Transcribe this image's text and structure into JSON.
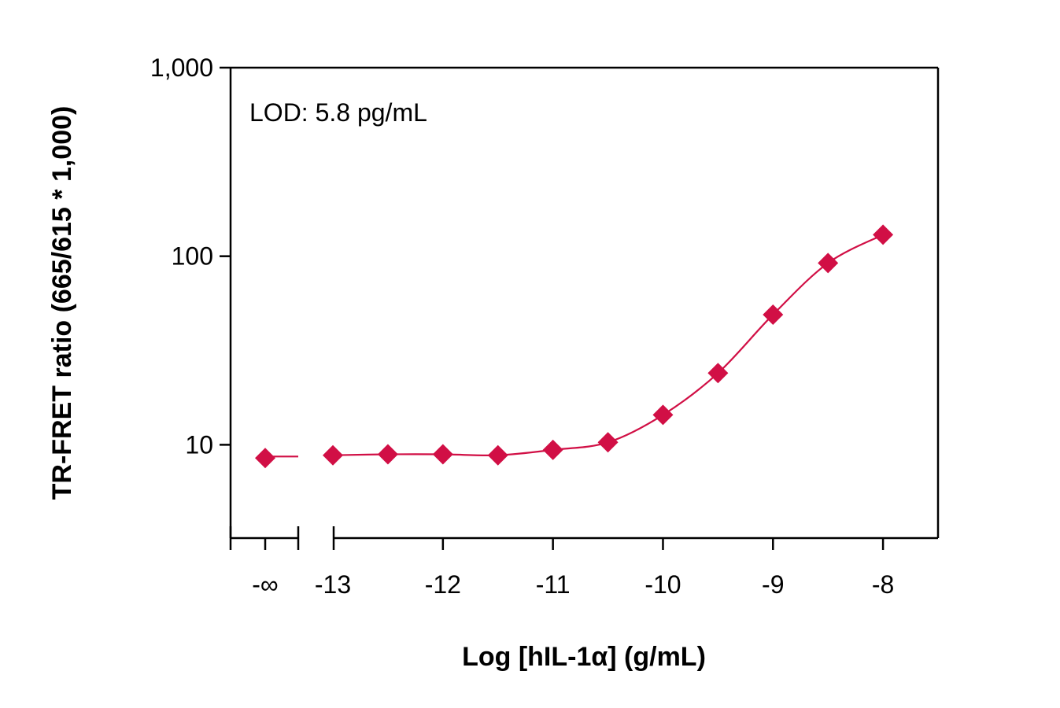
{
  "chart_data": {
    "type": "scatter",
    "xlabel": "Log [hIL-1α] (g/mL)",
    "ylabel": "TR-FRET ratio (665/615 * 1,000)",
    "annotation": "LOD: 5.8 pg/mL",
    "y_scale": "log",
    "ylim": [
      3.2,
      1000
    ],
    "xlim": [
      -13.93,
      -7.5
    ],
    "y_ticks": [
      {
        "value": 10,
        "label": "10"
      },
      {
        "value": 100,
        "label": "100"
      },
      {
        "value": 1000,
        "label": "1,000"
      }
    ],
    "x_ticks": [
      {
        "value": "-∞",
        "label": "-∞"
      },
      {
        "value": -13,
        "label": "-13"
      },
      {
        "value": -12,
        "label": "-12"
      },
      {
        "value": -11,
        "label": "-11"
      },
      {
        "value": -10,
        "label": "-10"
      },
      {
        "value": -9,
        "label": "-9"
      },
      {
        "value": -8,
        "label": "-8"
      }
    ],
    "axis_break": "between -∞ and -13",
    "series": [
      {
        "color": "#d10f45",
        "marker": "diamond",
        "points": [
          {
            "x": "-∞",
            "y": 8.5
          },
          {
            "x": -13.0,
            "y": 8.8
          },
          {
            "x": -12.5,
            "y": 8.9
          },
          {
            "x": -12.0,
            "y": 8.9
          },
          {
            "x": -11.5,
            "y": 8.8
          },
          {
            "x": -11.0,
            "y": 9.4
          },
          {
            "x": -10.5,
            "y": 10.3
          },
          {
            "x": -10.0,
            "y": 14.4
          },
          {
            "x": -9.5,
            "y": 24
          },
          {
            "x": -9.0,
            "y": 49
          },
          {
            "x": -8.5,
            "y": 92
          },
          {
            "x": -8.0,
            "y": 130
          }
        ]
      }
    ],
    "grid": false
  }
}
